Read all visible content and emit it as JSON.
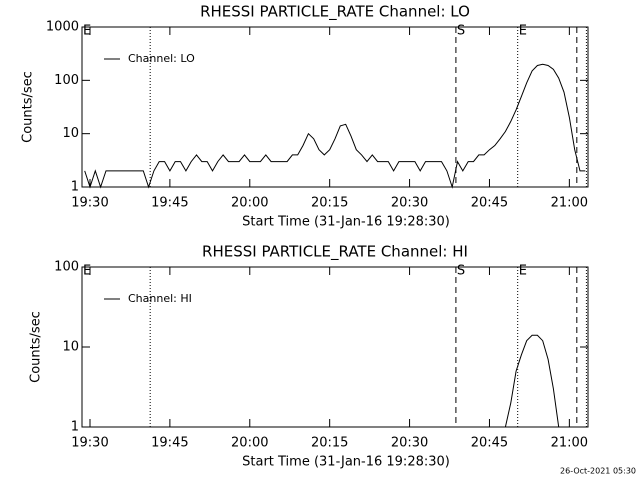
{
  "chart_data": [
    {
      "type": "line",
      "title": "RHESSI PARTICLE_RATE Channel: LO",
      "xlabel": "Start Time (31-Jan-16 19:28:30)",
      "ylabel": "Counts/sec",
      "x": [
        1169,
        1170,
        1171,
        1172,
        1173,
        1174,
        1175,
        1176,
        1177,
        1178,
        1179,
        1180,
        1181,
        1182,
        1183,
        1184,
        1185,
        1186,
        1187,
        1188,
        1189,
        1190,
        1191,
        1192,
        1193,
        1194,
        1195,
        1196,
        1197,
        1198,
        1199,
        1200,
        1201,
        1202,
        1203,
        1204,
        1205,
        1206,
        1207,
        1208,
        1209,
        1210,
        1211,
        1212,
        1213,
        1214,
        1215,
        1216,
        1217,
        1218,
        1219,
        1220,
        1221,
        1222,
        1223,
        1224,
        1225,
        1226,
        1227,
        1228,
        1229,
        1230,
        1231,
        1232,
        1233,
        1234,
        1235,
        1236,
        1237,
        1238,
        1239,
        1240,
        1241,
        1242,
        1243,
        1244,
        1245,
        1246,
        1247,
        1248,
        1249,
        1250,
        1251,
        1252,
        1253,
        1254,
        1255,
        1256,
        1257,
        1258,
        1259,
        1260,
        1261,
        1262,
        1263
      ],
      "series": [
        {
          "name": "Channel: LO",
          "color": "#000000",
          "values": [
            2,
            1,
            2,
            1,
            2,
            2,
            2,
            2,
            2,
            2,
            2,
            2,
            1,
            2,
            3,
            3,
            2,
            3,
            3,
            2,
            3,
            4,
            3,
            3,
            2,
            3,
            4,
            3,
            3,
            3,
            4,
            3,
            3,
            3,
            4,
            3,
            3,
            3,
            3,
            4,
            4,
            6,
            10,
            8,
            5,
            4,
            5,
            8,
            14,
            15,
            9,
            5,
            4,
            3,
            4,
            3,
            3,
            3,
            2,
            3,
            3,
            3,
            3,
            2,
            3,
            3,
            3,
            3,
            2,
            1,
            3,
            2,
            3,
            3,
            4,
            4,
            5,
            6,
            8,
            11,
            17,
            28,
            50,
            90,
            150,
            190,
            200,
            190,
            160,
            110,
            60,
            20,
            5,
            2,
            2
          ]
        }
      ],
      "xlim": [
        1168.5,
        1263.5
      ],
      "xticks": [
        {
          "value": 1170,
          "label": "19:30"
        },
        {
          "value": 1185,
          "label": "19:45"
        },
        {
          "value": 1200,
          "label": "20:00"
        },
        {
          "value": 1215,
          "label": "20:15"
        },
        {
          "value": 1230,
          "label": "20:30"
        },
        {
          "value": 1245,
          "label": "20:45"
        },
        {
          "value": 1260,
          "label": "21:00"
        }
      ],
      "ylim": [
        1,
        1000
      ],
      "yticks": [
        1,
        10,
        100,
        1000
      ],
      "log_y": true,
      "legend": "upper left",
      "markers": [
        {
          "x": 1168.5,
          "label": "E"
        },
        {
          "x": 1181.3,
          "style": "dotted"
        },
        {
          "x": 1238.7,
          "style": "dashed",
          "label": "S"
        },
        {
          "x": 1250.3,
          "style": "dotted",
          "label": "E"
        },
        {
          "x": 1261.4,
          "style": "dashed"
        },
        {
          "x": 1263.2,
          "style": "dotted"
        }
      ]
    },
    {
      "type": "line",
      "title": "RHESSI PARTICLE_RATE Channel: HI",
      "xlabel": "Start Time (31-Jan-16 19:28:30)",
      "ylabel": "Counts/sec",
      "x": [
        1248,
        1249,
        1250,
        1251,
        1252,
        1253,
        1254,
        1255,
        1256,
        1257,
        1258
      ],
      "series": [
        {
          "name": "Channel: HI",
          "color": "#000000",
          "values": [
            1,
            2,
            5,
            8,
            12,
            14,
            14,
            12,
            7,
            3,
            1
          ]
        }
      ],
      "xlim": [
        1168.5,
        1263.5
      ],
      "xticks": [
        {
          "value": 1170,
          "label": "19:30"
        },
        {
          "value": 1185,
          "label": "19:45"
        },
        {
          "value": 1200,
          "label": "20:00"
        },
        {
          "value": 1215,
          "label": "20:15"
        },
        {
          "value": 1230,
          "label": "20:30"
        },
        {
          "value": 1245,
          "label": "20:45"
        },
        {
          "value": 1260,
          "label": "21:00"
        }
      ],
      "ylim": [
        1,
        100
      ],
      "yticks": [
        1,
        10,
        100
      ],
      "log_y": true,
      "legend": "upper left",
      "markers": [
        {
          "x": 1168.5,
          "label": "E"
        },
        {
          "x": 1181.3,
          "style": "dotted"
        },
        {
          "x": 1238.7,
          "style": "dashed",
          "label": "S"
        },
        {
          "x": 1250.3,
          "style": "dotted",
          "label": "E"
        },
        {
          "x": 1261.4,
          "style": "dashed"
        },
        {
          "x": 1263.2,
          "style": "dotted"
        }
      ]
    }
  ],
  "footer": "26-Oct-2021 05:30"
}
